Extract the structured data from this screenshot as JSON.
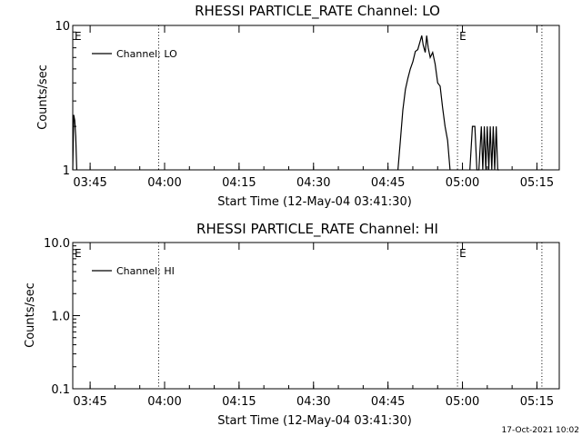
{
  "footer": {
    "timestamp": "17-Oct-2021 10:02"
  },
  "chart_data": [
    {
      "type": "line",
      "title": "RHESSI PARTICLE_RATE Channel: LO",
      "xlabel": "Start Time (12-May-04 03:41:30)",
      "ylabel": "Counts/sec",
      "yscale": "log",
      "xlim_minutes_after_start": [
        0,
        98
      ],
      "ylim": [
        1,
        10
      ],
      "ytick_labels": [
        "1",
        "10"
      ],
      "xtick_labels": [
        "03:45",
        "04:00",
        "04:15",
        "04:30",
        "04:45",
        "05:00",
        "05:15"
      ],
      "legend": {
        "label": "Channel: LO",
        "placement": "top-left"
      },
      "event_markers": [
        {
          "minutes_after_start": 0,
          "label": "E"
        },
        {
          "minutes_after_start": 17.3,
          "label": ""
        },
        {
          "minutes_after_start": 77.5,
          "label": "E"
        },
        {
          "minutes_after_start": 94.5,
          "label": ""
        }
      ],
      "series": [
        {
          "name": "Channel: LO",
          "segments": [
            {
              "minutes_after_start": [
                0,
                0.2,
                0.4,
                0.6,
                0.8
              ],
              "values": [
                1.0,
                2.4,
                2.2,
                1.7,
                1.0
              ]
            },
            {
              "minutes_after_start": [
                65.5,
                66.0,
                66.5,
                67.0,
                67.5,
                68.0,
                68.5,
                69.0,
                69.5,
                70.0,
                70.3,
                70.6,
                71.0,
                71.3,
                71.6,
                72.0,
                72.5,
                73.0,
                73.5,
                74.0,
                74.5,
                75.0,
                75.5,
                76.0
              ],
              "values": [
                1.0,
                1.6,
                2.6,
                3.6,
                4.3,
                5.0,
                5.6,
                6.6,
                6.8,
                7.8,
                8.5,
                7.3,
                6.5,
                8.5,
                7.0,
                6.0,
                6.5,
                5.4,
                4.0,
                3.8,
                2.7,
                2.0,
                1.6,
                1.0
              ]
            },
            {
              "minutes_after_start": [
                80.0,
                80.5,
                81.0,
                81.4,
                81.8,
                82.3,
                82.6,
                82.9,
                83.2,
                83.5,
                83.8,
                84.1,
                84.4,
                84.7,
                85.0,
                85.3,
                85.6,
                85.9
              ],
              "values": [
                1.0,
                2.0,
                2.0,
                1.0,
                1.0,
                2.0,
                1.0,
                2.0,
                1.0,
                2.0,
                1.0,
                2.0,
                1.0,
                2.0,
                1.0,
                2.0,
                1.0,
                1.0
              ]
            }
          ]
        }
      ]
    },
    {
      "type": "line",
      "title": "RHESSI PARTICLE_RATE Channel: HI",
      "xlabel": "Start Time (12-May-04 03:41:30)",
      "ylabel": "Counts/sec",
      "yscale": "log",
      "xlim_minutes_after_start": [
        0,
        98
      ],
      "ylim": [
        0.1,
        10
      ],
      "ytick_labels": [
        "0.1",
        "1.0",
        "10.0"
      ],
      "xtick_labels": [
        "03:45",
        "04:00",
        "04:15",
        "04:30",
        "04:45",
        "05:00",
        "05:15"
      ],
      "legend": {
        "label": "Channel: HI",
        "placement": "top-left"
      },
      "event_markers": [
        {
          "minutes_after_start": 0,
          "label": "E"
        },
        {
          "minutes_after_start": 17.3,
          "label": ""
        },
        {
          "minutes_after_start": 77.5,
          "label": "E"
        },
        {
          "minutes_after_start": 94.5,
          "label": ""
        }
      ],
      "series": [
        {
          "name": "Channel: HI",
          "segments": []
        }
      ]
    }
  ]
}
